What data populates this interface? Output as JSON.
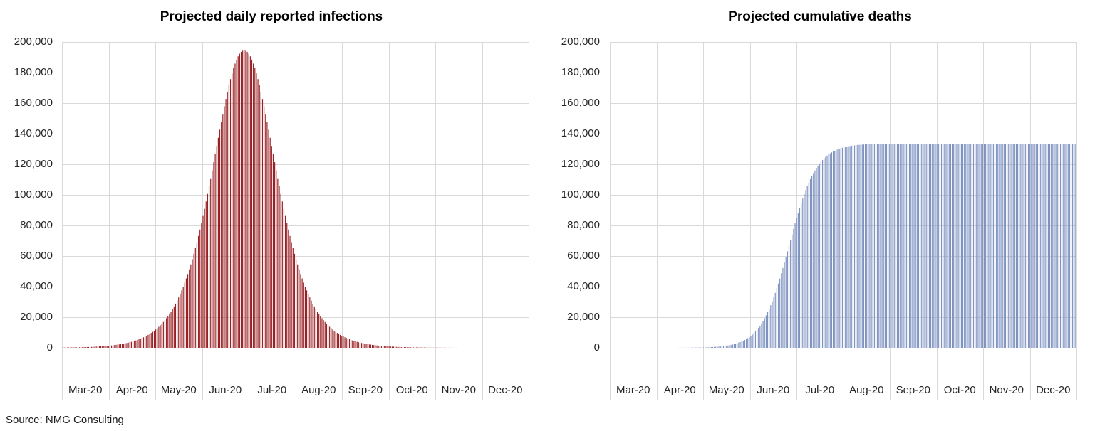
{
  "page": {
    "background": "#ffffff",
    "source_note": "Source: NMG Consulting"
  },
  "colors": {
    "gridline": "#d9d9d9",
    "axis_line": "#bfbfbf",
    "label_text": "#262626",
    "title_text": "#000000",
    "infections_bar": "#992125",
    "deaths_bar": "#7f93c1"
  },
  "axis": {
    "y_max": 200000,
    "y_tick_step": 20000,
    "y_tick_labels": [
      "0",
      "20,000",
      "40,000",
      "60,000",
      "80,000",
      "100,000",
      "120,000",
      "140,000",
      "160,000",
      "180,000",
      "200,000"
    ],
    "x_labels": [
      "Mar-20",
      "Apr-20",
      "May-20",
      "Jun-20",
      "Jul-20",
      "Aug-20",
      "Sep-20",
      "Oct-20",
      "Nov-20",
      "Dec-20"
    ],
    "month_days": [
      31,
      30,
      31,
      30,
      31,
      31,
      30,
      31,
      30,
      31
    ]
  },
  "chart_data": [
    {
      "type": "bar",
      "title": "Projected daily reported infections",
      "bar_color": "#992125",
      "bar_style": "thin vertical bar per day",
      "x_tick_labels": [
        "Mar-20",
        "Apr-20",
        "May-20",
        "Jun-20",
        "Jul-20",
        "Aug-20",
        "Sep-20",
        "Oct-20",
        "Nov-20",
        "Dec-20"
      ],
      "ylim": [
        0,
        200000
      ],
      "grid": true,
      "legend": "none",
      "model": {
        "shape": "logistic-derivative-sech2",
        "peak": 194500,
        "peak_date": "2020-06-28",
        "width_s_days": 14
      },
      "monthly_values_on_1st": {
        "Mar-20": 150,
        "Apr-20": 1500,
        "May-20": 12000,
        "Jun-20": 86000,
        "Jul-20": 192000,
        "Aug-20": 58000,
        "Sep-20": 7400,
        "Oct-20": 900,
        "Nov-20": 100,
        "Dec-20": 10
      },
      "notable_points": {
        "peak_value": 194500,
        "peak_date": "late Jun-20",
        "visible_range": "late Mar-20 to mid Sep-20"
      }
    },
    {
      "type": "bar",
      "title": "Projected cumulative deaths",
      "bar_color": "#7f93c1",
      "bar_style": "thin vertical bar per day",
      "x_tick_labels": [
        "Mar-20",
        "Apr-20",
        "May-20",
        "Jun-20",
        "Jul-20",
        "Aug-20",
        "Sep-20",
        "Oct-20",
        "Nov-20",
        "Dec-20"
      ],
      "ylim": [
        0,
        200000
      ],
      "grid": true,
      "legend": "none",
      "model": {
        "shape": "logistic",
        "plateau": 133500,
        "midpoint_date": "2020-06-26",
        "steepness_s_days": 9
      },
      "monthly_values_on_1st": {
        "Mar-20": 0,
        "Apr-20": 10,
        "May-20": 240,
        "Jun-20": 7000,
        "Jul-20": 85000,
        "Aug-20": 131000,
        "Sep-20": 133400,
        "Oct-20": 133500,
        "Nov-20": 133500,
        "Dec-20": 133500
      },
      "notable_points": {
        "plateau_value": 133500,
        "plateau_reached": "mid Aug-20",
        "visible_range": "late Apr-20 onward"
      }
    }
  ]
}
